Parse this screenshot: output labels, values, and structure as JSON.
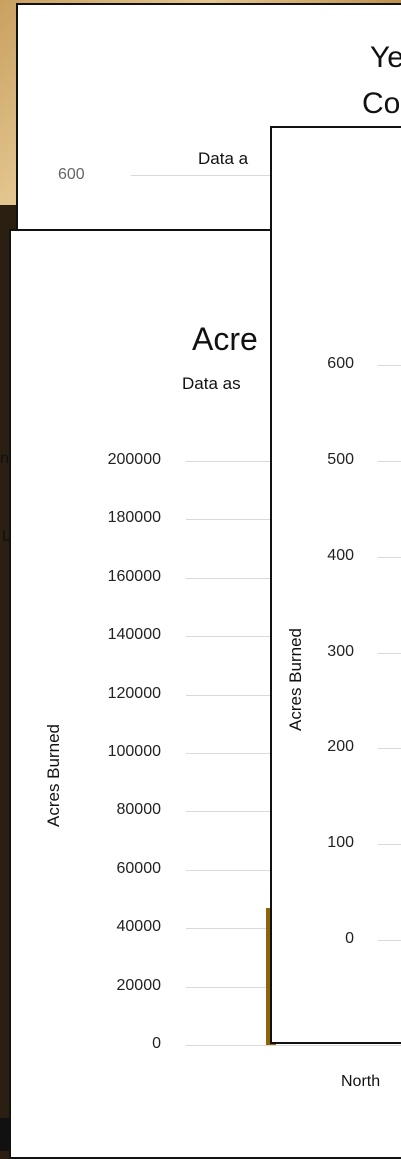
{
  "chart_data": [
    {
      "type": "bar",
      "title_visible": "Ye",
      "title_line2_visible": "Co",
      "subtitle_visible": "Data a",
      "yticks_visible": [
        "600"
      ],
      "side_letters": [
        "n",
        "L"
      ]
    },
    {
      "type": "bar",
      "title_visible": "Acre",
      "subtitle_visible": "Data as",
      "ylabel": "Acres Burned",
      "yticks": [
        "0",
        "20000",
        "40000",
        "60000",
        "80000",
        "100000",
        "120000",
        "140000",
        "160000",
        "180000",
        "200000"
      ],
      "ylim": [
        0,
        200000
      ],
      "series": [
        {
          "values": [
            47000
          ],
          "color": "#8B6508"
        }
      ],
      "xtick_visible": "North"
    },
    {
      "type": "bar",
      "ylabel": "Acres Burned",
      "yticks": [
        "0",
        "100",
        "200",
        "300",
        "400",
        "500",
        "600"
      ],
      "ylim": [
        0,
        600
      ]
    }
  ]
}
